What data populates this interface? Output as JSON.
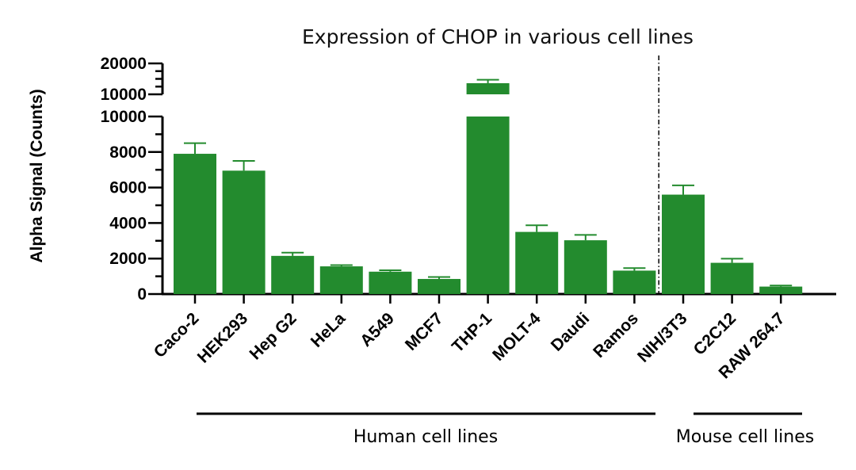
{
  "chart_data": {
    "type": "bar",
    "title": "Expression of CHOP in various cell lines",
    "xlabel": "",
    "ylabel": "Alpha Signal (Counts)",
    "bar_color": "#238b2e",
    "axis_break": {
      "lower_range": [
        0,
        10000
      ],
      "upper_range": [
        10000,
        20000
      ]
    },
    "lower_ticks": [
      "0",
      "2000",
      "4000",
      "6000",
      "8000",
      "10000"
    ],
    "upper_ticks": [
      "10000",
      "20000"
    ],
    "categories": [
      "Caco-2",
      "HEK293",
      "Hep G2",
      "HeLa",
      "A549",
      "MCF7",
      "THP-1",
      "MOLT-4",
      "Daudi",
      "Ramos",
      "NIH/3T3",
      "C2C12",
      "RAW 264.7"
    ],
    "values": [
      7900,
      6950,
      2150,
      1560,
      1260,
      850,
      13600,
      3500,
      3030,
      1320,
      5600,
      1760,
      420
    ],
    "error": [
      600,
      550,
      180,
      70,
      80,
      110,
      1100,
      370,
      300,
      140,
      520,
      230,
      60
    ],
    "groups": [
      {
        "label": "Human cell lines",
        "categories": [
          "Caco-2",
          "HEK293",
          "Hep G2",
          "HeLa",
          "A549",
          "MCF7",
          "THP-1",
          "MOLT-4",
          "Daudi",
          "Ramos"
        ]
      },
      {
        "label": "Mouse cell lines",
        "categories": [
          "NIH/3T3",
          "C2C12",
          "RAW 264.7"
        ]
      }
    ],
    "legend": "none",
    "grid": false
  }
}
